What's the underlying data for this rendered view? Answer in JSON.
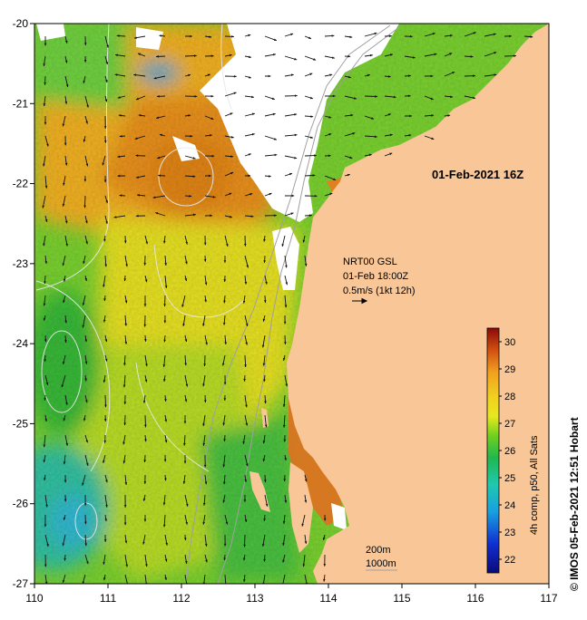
{
  "map": {
    "date_label": "01-Feb-2021 16Z",
    "current_info": {
      "line1": "NRT00 GSL",
      "line2": "01-Feb 18:00Z",
      "line3": "0.5m/s (1kt 12h)"
    },
    "depth_legend": {
      "shallow": "200m",
      "deep": "1000m"
    },
    "credit": "© IMOS 05-Feb-2021 12:51 Hobart",
    "x_ticks": [
      "110",
      "111",
      "112",
      "113",
      "114",
      "115",
      "116",
      "117"
    ],
    "y_ticks": [
      "-20",
      "-21",
      "-22",
      "-23",
      "-24",
      "-25",
      "-26",
      "-27"
    ],
    "colors": {
      "land": "#f9c797",
      "cloud": "#ffffff",
      "isobath": "#a0a0a0"
    }
  },
  "colorbar": {
    "label": "4h comp, p50, All Sats",
    "ticks": [
      "22",
      "23",
      "24",
      "25",
      "26",
      "27",
      "28",
      "29",
      "30"
    ],
    "range": [
      21.5,
      30.5
    ]
  }
}
